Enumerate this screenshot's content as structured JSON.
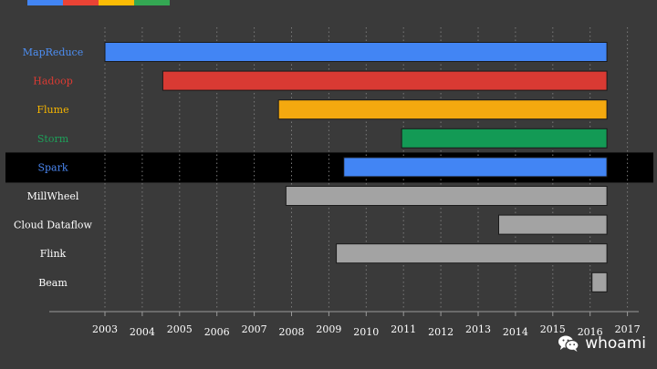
{
  "colors": {
    "background": "#3a3a3a",
    "highlight_band": "#000000",
    "grid": "#7a7a7a",
    "axis": "#9a9a9a",
    "tick_text": "#ffffff",
    "brand": [
      "#4285f4",
      "#ea4335",
      "#fbbc05",
      "#34a853"
    ]
  },
  "chart_data": {
    "type": "bar",
    "orientation": "horizontal",
    "subtype": "timeline",
    "title": "",
    "xlabel": "",
    "ylabel": "",
    "grid": true,
    "highlighted_category": "Spark",
    "x_ticks": [
      "2003",
      "2004",
      "2005",
      "2006",
      "2007",
      "2008",
      "2009",
      "2010",
      "2011",
      "2012",
      "2013",
      "2014",
      "2015",
      "2016",
      "2017"
    ],
    "xlim": [
      2003,
      2017
    ],
    "categories": [
      "MapReduce",
      "Hadoop",
      "Flume",
      "Storm",
      "Spark",
      "MillWheel",
      "Cloud Dataflow",
      "Flink",
      "Beam"
    ],
    "bars": [
      {
        "label": "MapReduce",
        "start": 2003.0,
        "end": 2016.45,
        "color": "#4285f4",
        "label_color": "#4d8ff4"
      },
      {
        "label": "Hadoop",
        "start": 2004.55,
        "end": 2016.45,
        "color": "#d93a33",
        "label_color": "#dd3b33"
      },
      {
        "label": "Flume",
        "start": 2007.65,
        "end": 2016.45,
        "color": "#f4a90f",
        "label_color": "#f4b400"
      },
      {
        "label": "Storm",
        "start": 2010.95,
        "end": 2016.45,
        "color": "#139a55",
        "label_color": "#1ea05a"
      },
      {
        "label": "Spark",
        "start": 2009.4,
        "end": 2016.45,
        "color": "#4285f4",
        "label_color": "#4a86f0"
      },
      {
        "label": "MillWheel",
        "start": 2007.85,
        "end": 2016.45,
        "color": "#a3a3a3",
        "label_color": "#ffffff"
      },
      {
        "label": "Cloud Dataflow",
        "start": 2013.55,
        "end": 2016.45,
        "color": "#a3a3a3",
        "label_color": "#ffffff"
      },
      {
        "label": "Flink",
        "start": 2009.2,
        "end": 2016.45,
        "color": "#a3a3a3",
        "label_color": "#ffffff"
      },
      {
        "label": "Beam",
        "start": 2016.05,
        "end": 2016.45,
        "color": "#a3a3a3",
        "label_color": "#ffffff"
      }
    ]
  },
  "watermark": {
    "icon": "wechat-icon",
    "text": "whoami"
  }
}
